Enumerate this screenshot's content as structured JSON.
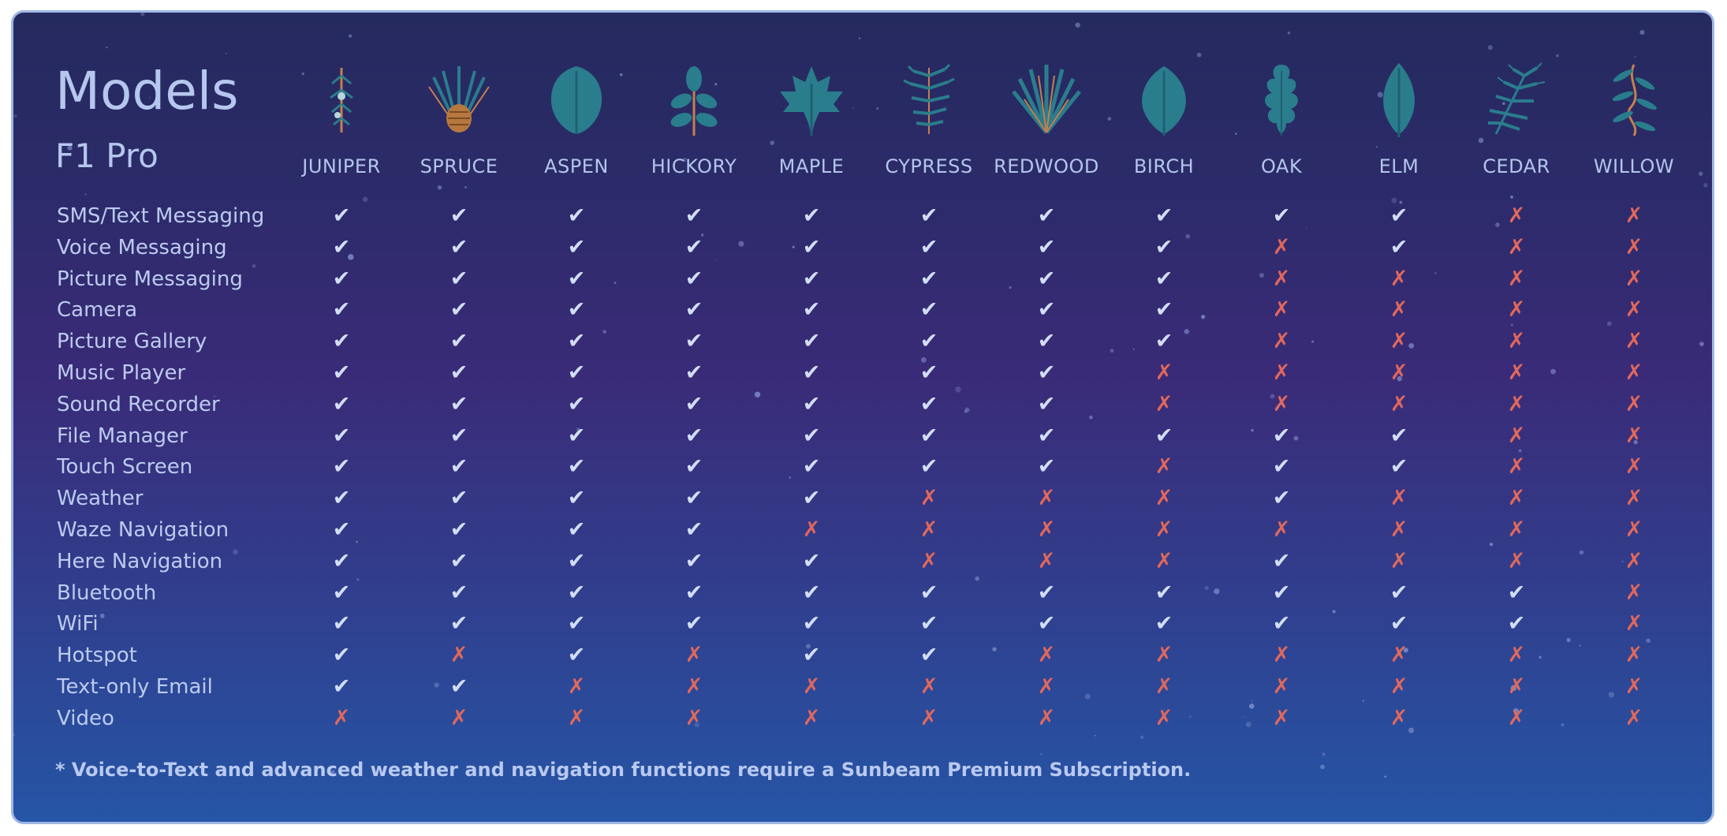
{
  "header": {
    "title": "Models",
    "subtitle": "F1 Pro"
  },
  "models": [
    {
      "name": "JUNIPER",
      "icon": "juniper-sprig-icon"
    },
    {
      "name": "SPRUCE",
      "icon": "spruce-pinecone-icon"
    },
    {
      "name": "ASPEN",
      "icon": "aspen-leaf-icon"
    },
    {
      "name": "HICKORY",
      "icon": "hickory-leaf-icon"
    },
    {
      "name": "MAPLE",
      "icon": "maple-leaf-icon"
    },
    {
      "name": "CYPRESS",
      "icon": "cypress-sprig-icon"
    },
    {
      "name": "REDWOOD",
      "icon": "redwood-branch-icon"
    },
    {
      "name": "BIRCH",
      "icon": "birch-leaf-icon"
    },
    {
      "name": "OAK",
      "icon": "oak-leaf-icon"
    },
    {
      "name": "ELM",
      "icon": "elm-leaf-icon"
    },
    {
      "name": "CEDAR",
      "icon": "cedar-frond-icon"
    },
    {
      "name": "WILLOW",
      "icon": "willow-branch-icon"
    }
  ],
  "symbols": {
    "yes": "✔",
    "no": "✗"
  },
  "features": [
    {
      "label": "SMS/Text Messaging",
      "support": "YYYYYYYYYYNN"
    },
    {
      "label": "Voice Messaging",
      "support": "YYYYYYYYNYNN"
    },
    {
      "label": "Picture Messaging",
      "support": "YYYYYYYYNNNN"
    },
    {
      "label": "Camera",
      "support": "YYYYYYYYNNNN"
    },
    {
      "label": "Picture Gallery",
      "support": "YYYYYYYYNNNN"
    },
    {
      "label": "Music Player",
      "support": "YYYYYYYNNNNN"
    },
    {
      "label": "Sound Recorder",
      "support": "YYYYYYYNNNNN"
    },
    {
      "label": "File Manager",
      "support": "YYYYYYYYYYNN"
    },
    {
      "label": "Touch Screen",
      "support": "YYYYYYYNYYNN"
    },
    {
      "label": "Weather",
      "support": "YYYYYNNNYNNN"
    },
    {
      "label": "Waze Navigation",
      "support": "YYYYNNNNNNNN"
    },
    {
      "label": "Here Navigation",
      "support": "YYYYYNNNYNNN"
    },
    {
      "label": "Bluetooth",
      "support": "YYYYYYYYYYYN"
    },
    {
      "label": "WiFi",
      "support": "YYYYYYYYYYYN"
    },
    {
      "label": "Hotspot",
      "support": "YNYNYYNNNNNN"
    },
    {
      "label": "Text-only Email",
      "support": "YYNNNNNNNNNN"
    },
    {
      "label": "Video",
      "support": "NNNNNNNNNNNN"
    }
  ],
  "footnote": "* Voice-to-Text and advanced weather and navigation functions require a Sunbeam Premium Subscription.",
  "colors": {
    "background_top": "#252a5e",
    "background_bottom": "#2655a6",
    "border": "#9fb6e6",
    "text": "#b6c7ee",
    "check": "#d2def6",
    "cross": "#e0685c",
    "leaf": "#2a7d8c",
    "twig": "#c4804f"
  }
}
